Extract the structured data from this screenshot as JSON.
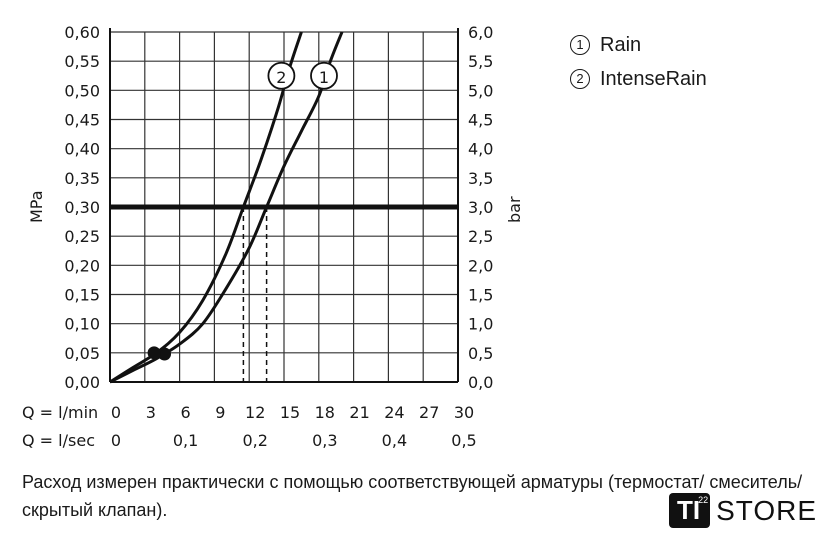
{
  "chart_data": {
    "type": "line",
    "left_axis_title": "MPa",
    "right_axis_title": "bar",
    "left_ticks": [
      "0,00",
      "0,05",
      "0,10",
      "0,15",
      "0,20",
      "0,25",
      "0,30",
      "0,35",
      "0,40",
      "0,45",
      "0,50",
      "0,55",
      "0,60"
    ],
    "right_ticks": [
      "0,0",
      "0,5",
      "1,0",
      "1,5",
      "2,0",
      "2,5",
      "3,0",
      "3,5",
      "4,0",
      "4,5",
      "5,0",
      "5,5",
      "6,0"
    ],
    "x_row1_label": "Q = l/min",
    "x_row1_ticks": [
      "0",
      "3",
      "6",
      "9",
      "12",
      "15",
      "18",
      "21",
      "24",
      "27",
      "30"
    ],
    "x_row2_label": "Q = l/sec",
    "x_row2_ticks": [
      "0",
      "0,1",
      "0,2",
      "0,3",
      "0,4",
      "0,5"
    ],
    "xlim": [
      0,
      30
    ],
    "ylim": [
      0,
      0.6
    ],
    "grid": true,
    "reference_line_y": 0.3,
    "series": [
      {
        "name": "1",
        "x": [
          0,
          2,
          4,
          6,
          8,
          10,
          12,
          13.5,
          15,
          16.5,
          18,
          19,
          20
        ],
        "y": [
          0,
          0.02,
          0.04,
          0.065,
          0.1,
          0.16,
          0.23,
          0.3,
          0.37,
          0.43,
          0.49,
          0.55,
          0.6
        ],
        "marker_x": 4.7,
        "marker_y": 0.048,
        "drop_x": 13.5
      },
      {
        "name": "2",
        "x": [
          0,
          2,
          4,
          6,
          8,
          10,
          11.5,
          13,
          14.5,
          15.5,
          16.5
        ],
        "y": [
          0,
          0.025,
          0.05,
          0.085,
          0.14,
          0.22,
          0.3,
          0.38,
          0.47,
          0.54,
          0.6
        ],
        "marker_x": 3.8,
        "marker_y": 0.05,
        "drop_x": 11.5
      }
    ]
  },
  "legend": [
    {
      "mark": "1",
      "label": "Rain"
    },
    {
      "mark": "2",
      "label": "IntenseRain"
    }
  ],
  "caption": "Расход измерен практически с помощью соответствующей арматуры (термостат/ смеситель/скрытый клапан).",
  "logo": {
    "box_text": "TI",
    "superscript": "22",
    "word": "STORE"
  }
}
